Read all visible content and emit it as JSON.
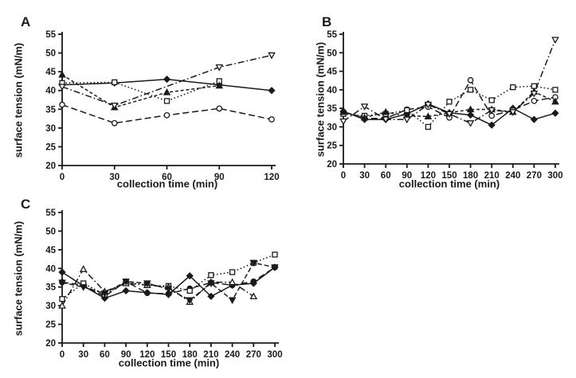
{
  "figure": {
    "background": "#ffffff",
    "ink_color": "#1a1a1a",
    "xlabel": "collection time (min)",
    "ylabel": "surface tension (mN/m)"
  },
  "chart_data": [
    {
      "panel": "A",
      "type": "line",
      "title": "",
      "xlabel": "collection time (min)",
      "ylabel": "surface tension (mN/m)",
      "x": [
        0,
        30,
        60,
        90,
        120
      ],
      "x_ticks": [
        0,
        30,
        60,
        90,
        120
      ],
      "y_ticks": [
        20,
        25,
        30,
        35,
        40,
        45,
        50,
        55
      ],
      "xlim": [
        0,
        120
      ],
      "ylim": [
        20,
        55
      ],
      "grid": false,
      "legend": "none",
      "series": [
        {
          "name": "filled-diamond-solid",
          "marker": "diamond",
          "filled": true,
          "dash": "solid",
          "values": [
            41.5,
            42.0,
            43.0,
            41.5,
            40.0
          ]
        },
        {
          "name": "open-circle-long-dash",
          "marker": "circle",
          "filled": false,
          "dash": "long-dash",
          "values": [
            36.2,
            31.3,
            33.4,
            35.2,
            32.3
          ]
        },
        {
          "name": "open-square-dotted",
          "marker": "square",
          "filled": false,
          "dash": "dotted",
          "values": [
            42.0,
            42.2,
            37.2,
            42.5,
            null
          ]
        },
        {
          "name": "filled-triangle-short-dash",
          "marker": "triangle",
          "filled": true,
          "dash": "short-dash",
          "values": [
            44.2,
            35.5,
            39.5,
            41.3,
            null
          ]
        },
        {
          "name": "open-invtriangle-dash-dot",
          "marker": "invtriangle",
          "filled": false,
          "dash": "dash-dot",
          "values": [
            41.0,
            36.0,
            null,
            46.2,
            49.4
          ]
        }
      ]
    },
    {
      "panel": "B",
      "type": "line",
      "title": "",
      "xlabel": "collection time (min)",
      "ylabel": "surface tension (mN/m)",
      "x": [
        0,
        30,
        60,
        90,
        120,
        150,
        180,
        210,
        240,
        270,
        300
      ],
      "x_ticks": [
        0,
        30,
        60,
        90,
        120,
        150,
        180,
        210,
        240,
        270,
        300
      ],
      "y_ticks": [
        20,
        25,
        30,
        35,
        40,
        45,
        50,
        55
      ],
      "xlim": [
        0,
        300
      ],
      "ylim": [
        20,
        55
      ],
      "grid": false,
      "legend": "none",
      "series": [
        {
          "name": "filled-diamond-solid",
          "marker": "diamond",
          "filled": true,
          "dash": "solid",
          "values": [
            34.2,
            32.0,
            32.0,
            33.5,
            36.2,
            33.8,
            33.2,
            30.5,
            35.0,
            32.0,
            33.7
          ]
        },
        {
          "name": "open-circle-long-dash",
          "marker": "circle",
          "filled": false,
          "dash": "long-dash",
          "values": [
            34.0,
            32.3,
            32.3,
            34.7,
            35.4,
            32.5,
            42.6,
            33.0,
            34.5,
            37.0,
            38.0
          ]
        },
        {
          "name": "open-square-dotted",
          "marker": "square",
          "filled": false,
          "dash": "dotted",
          "values": [
            33.5,
            33.0,
            33.5,
            34.5,
            30.0,
            36.8,
            40.0,
            37.2,
            40.7,
            41.0,
            40.0
          ]
        },
        {
          "name": "filled-triangle-short-dash",
          "marker": "triangle",
          "filled": true,
          "dash": "short-dash",
          "values": [
            34.0,
            32.5,
            34.0,
            33.0,
            32.8,
            33.8,
            34.7,
            34.7,
            34.0,
            39.5,
            36.8
          ]
        },
        {
          "name": "open-invtriangle-dash-dot",
          "marker": "invtriangle",
          "filled": false,
          "dash": "dash-dot",
          "values": [
            31.5,
            35.5,
            32.0,
            32.0,
            36.0,
            33.5,
            31.0,
            34.5,
            34.0,
            39.0,
            53.5
          ]
        }
      ]
    },
    {
      "panel": "C",
      "type": "line",
      "title": "",
      "xlabel": "collection time (min)",
      "ylabel": "surface tension (mN/m)",
      "x": [
        0,
        30,
        60,
        90,
        120,
        150,
        180,
        210,
        240,
        270,
        300
      ],
      "x_ticks": [
        0,
        30,
        60,
        90,
        120,
        150,
        180,
        210,
        240,
        270,
        300
      ],
      "y_ticks": [
        20,
        25,
        30,
        35,
        40,
        45,
        50,
        55
      ],
      "xlim": [
        0,
        300
      ],
      "ylim": [
        20,
        55
      ],
      "grid": false,
      "legend": "none",
      "series": [
        {
          "name": "filled-diamond-solid",
          "marker": "diamond",
          "filled": true,
          "dash": "solid",
          "values": [
            39.0,
            35.3,
            32.0,
            34.0,
            33.5,
            33.0,
            38.0,
            32.5,
            35.5,
            36.0,
            40.3
          ]
        },
        {
          "name": "filled-circle-long-dash",
          "marker": "circle",
          "filled": true,
          "dash": "long-dash",
          "values": [
            36.3,
            35.5,
            32.5,
            36.5,
            33.4,
            33.2,
            34.6,
            36.2,
            35.5,
            36.5,
            40.3
          ]
        },
        {
          "name": "open-square-dotted",
          "marker": "square",
          "filled": false,
          "dash": "dotted",
          "values": [
            31.8,
            36.0,
            33.0,
            36.3,
            35.5,
            35.3,
            34.0,
            38.2,
            39.0,
            41.5,
            43.7
          ]
        },
        {
          "name": "open-triangle-dash-dot",
          "marker": "triangle",
          "filled": false,
          "dash": "dash-dot",
          "values": [
            30.0,
            39.8,
            33.8,
            36.0,
            35.5,
            35.0,
            31.0,
            36.3,
            36.3,
            32.5,
            null
          ]
        },
        {
          "name": "filled-invtriangle-med-dash",
          "marker": "invtriangle",
          "filled": true,
          "dash": "med-dash",
          "values": [
            36.2,
            35.0,
            33.3,
            36.5,
            36.0,
            34.5,
            31.5,
            36.0,
            31.5,
            41.5,
            40.3
          ]
        }
      ]
    }
  ]
}
